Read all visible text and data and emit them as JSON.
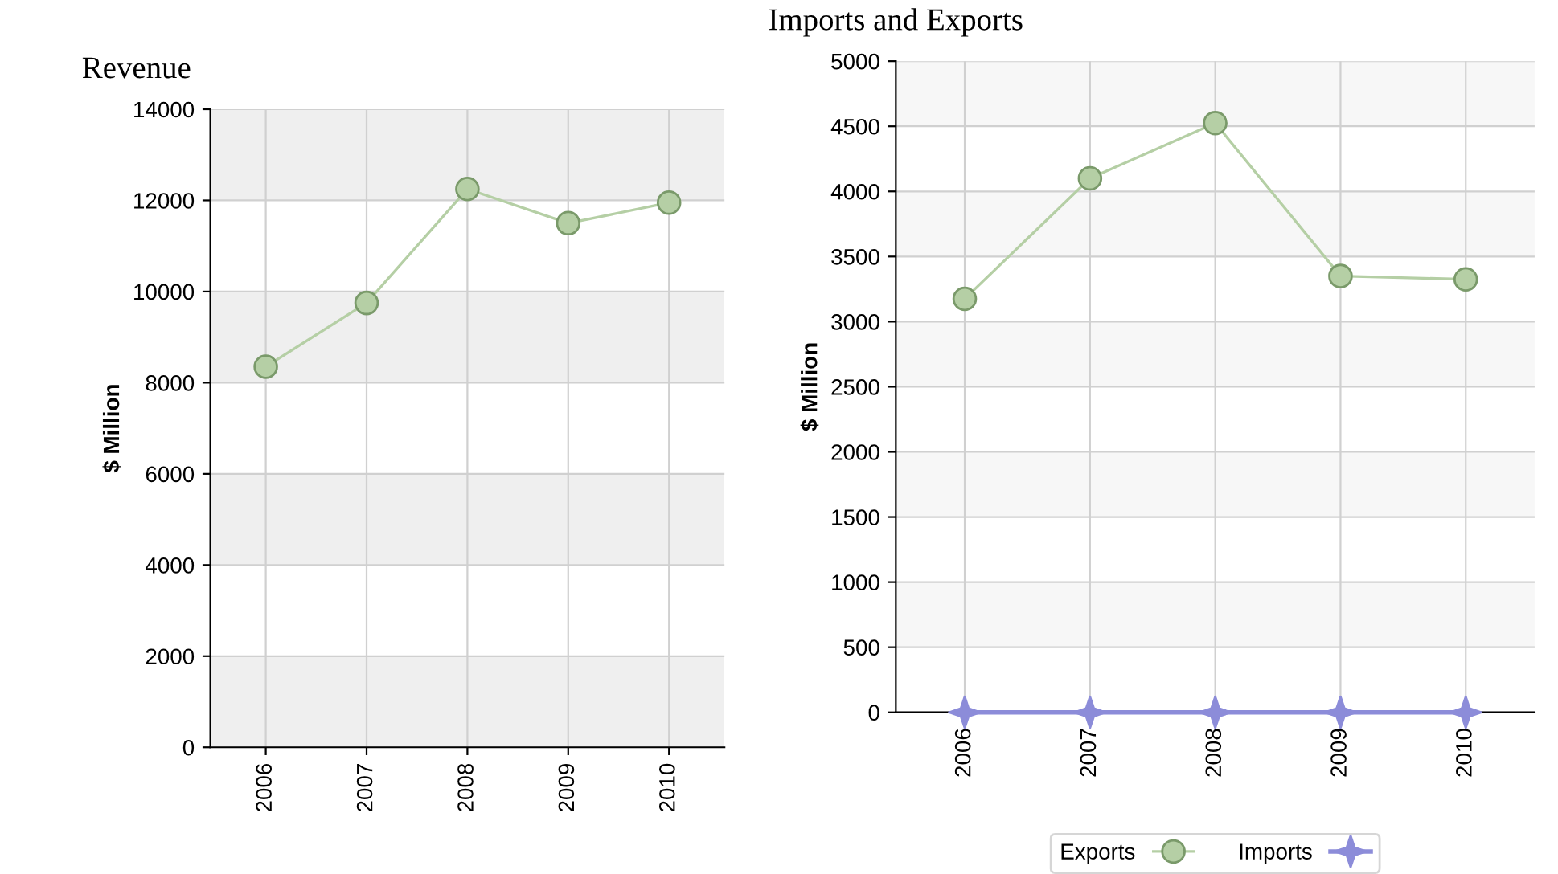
{
  "chart_data": [
    {
      "type": "line",
      "title": "Revenue",
      "ylabel": "$ Million",
      "categories": [
        "2006",
        "2007",
        "2008",
        "2009",
        "2010"
      ],
      "series": [
        {
          "color": "#b5cfa5",
          "values": [
            8350,
            9750,
            12250,
            11500,
            11950
          ],
          "marker": "circle"
        }
      ],
      "ylim": [
        0,
        14000
      ],
      "yticks": [
        0,
        2000,
        4000,
        6000,
        8000,
        10000,
        12000,
        14000
      ],
      "grid": true,
      "legend": false
    },
    {
      "type": "line",
      "title": "Imports and Exports",
      "ylabel": "$ Million",
      "categories": [
        "2006",
        "2007",
        "2008",
        "2009",
        "2010"
      ],
      "series": [
        {
          "name": "Exports",
          "color": "#b5cfa5",
          "values": [
            3175,
            4100,
            4525,
            3350,
            3325
          ],
          "marker": "circle"
        },
        {
          "name": "Imports",
          "color": "#8c8cd9",
          "values": [
            0,
            0,
            0,
            0,
            0
          ],
          "marker": "star"
        }
      ],
      "ylim": [
        0,
        5000
      ],
      "yticks": [
        0,
        500,
        1000,
        1500,
        2000,
        2500,
        3000,
        3500,
        4000,
        4500,
        5000
      ],
      "grid": true,
      "legend": "bottom"
    }
  ]
}
